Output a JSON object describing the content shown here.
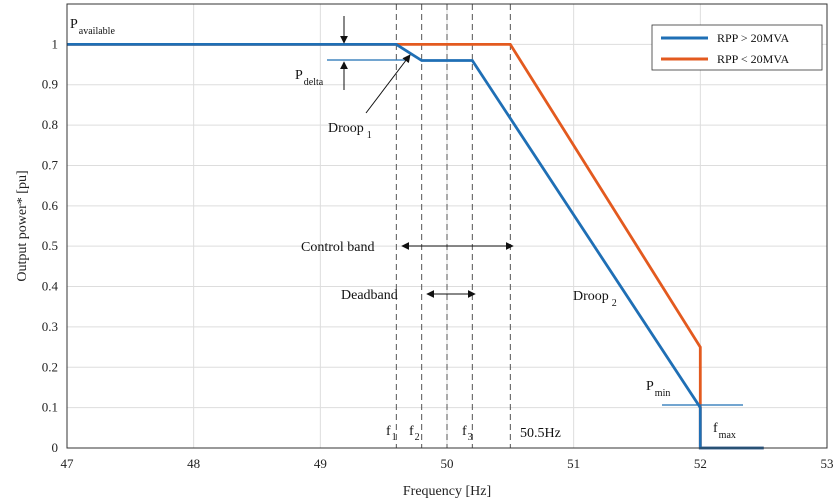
{
  "chart_data": {
    "type": "line",
    "title": "",
    "xlabel": "Frequency [Hz]",
    "ylabel": "Output power* [pu]",
    "xlim": [
      47,
      53
    ],
    "ylim": [
      0,
      1.1
    ],
    "xticks": [
      "47",
      "48",
      "49",
      "50",
      "51",
      "52",
      "53"
    ],
    "yticks": [
      "0",
      "0.1",
      "0.2",
      "0.3",
      "0.4",
      "0.5",
      "0.6",
      "0.7",
      "0.8",
      "0.9",
      "1"
    ],
    "grid": true,
    "legend_position": "top-right",
    "series": [
      {
        "name": "RPP > 20MVA",
        "color": "#1f6fb5",
        "x": [
          47,
          49.6,
          49.8,
          50.2,
          52,
          52,
          52.5
        ],
        "y": [
          1,
          1,
          0.96,
          0.96,
          0.1,
          0,
          0
        ]
      },
      {
        "name": "RPP < 20MVA",
        "color": "#e35a1f",
        "x": [
          47,
          50.5,
          52,
          52,
          52.5
        ],
        "y": [
          1,
          1,
          0.25,
          0,
          0
        ]
      }
    ],
    "vlines": [
      49.6,
      49.8,
      50,
      50.2,
      50.5
    ],
    "annotations": {
      "p_available": {
        "main": "P",
        "sub": "available"
      },
      "p_delta": {
        "main": "P",
        "sub": "delta"
      },
      "droop1": {
        "main": "Droop",
        "sub": "1"
      },
      "droop2": {
        "main": "Droop",
        "sub": "2"
      },
      "control_band": "Control band",
      "deadband": "Deadband",
      "p_min": {
        "main": "P",
        "sub": "min"
      },
      "f1": {
        "main": "f",
        "sub": "1"
      },
      "f2": {
        "main": "f",
        "sub": "2"
      },
      "f3": {
        "main": "f",
        "sub": "3"
      },
      "f_label_505": "50.5Hz",
      "f_max": {
        "main": "f",
        "sub": "max"
      }
    }
  }
}
